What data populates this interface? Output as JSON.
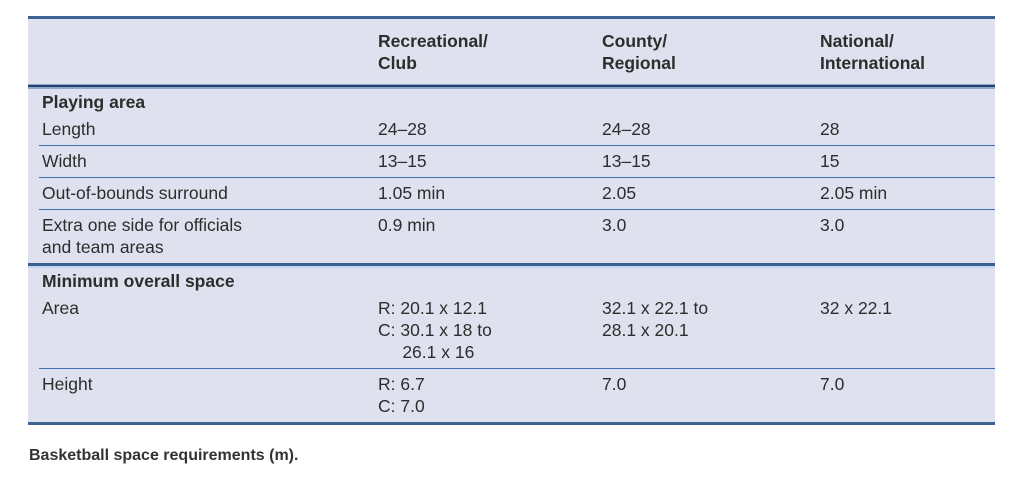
{
  "caption": "Basketball space requirements (m).",
  "colors": {
    "table_background": "#dfe2ee",
    "outer_border_blue": "#3d6392",
    "header_divider_dark": "#24416e",
    "header_divider_light": "#8aa6cd",
    "section_divider_dark": "#3a5f93",
    "section_divider_light": "#c2d5ef",
    "row_divider_blue": "#3f6cab",
    "text": "#2d2d2d"
  },
  "table": {
    "columns": [
      "",
      "Recreational/\nClub",
      "County/\nRegional",
      "National/\nInternational"
    ],
    "sections": [
      {
        "title": "Playing area",
        "rows": [
          {
            "label": "Length",
            "values": [
              "24–28",
              "24–28",
              "28"
            ]
          },
          {
            "label": "Width",
            "values": [
              "13–15",
              "13–15",
              "15"
            ]
          },
          {
            "label": "Out-of-bounds surround",
            "values": [
              "1.05 min",
              "2.05",
              "2.05 min"
            ]
          },
          {
            "label": "Extra one side for officials\nand team areas",
            "values": [
              "0.9 min",
              "3.0",
              "3.0"
            ]
          }
        ]
      },
      {
        "title": "Minimum overall space",
        "rows": [
          {
            "label": "Area",
            "values": [
              "R: 20.1 x 12.1\nC: 30.1 x 18 to\n     26.1 x 16",
              "32.1 x 22.1 to\n28.1 x 20.1",
              "32 x 22.1"
            ]
          },
          {
            "label": "Height",
            "values": [
              "R: 6.7\nC: 7.0",
              "7.0",
              "7.0"
            ]
          }
        ]
      }
    ]
  }
}
